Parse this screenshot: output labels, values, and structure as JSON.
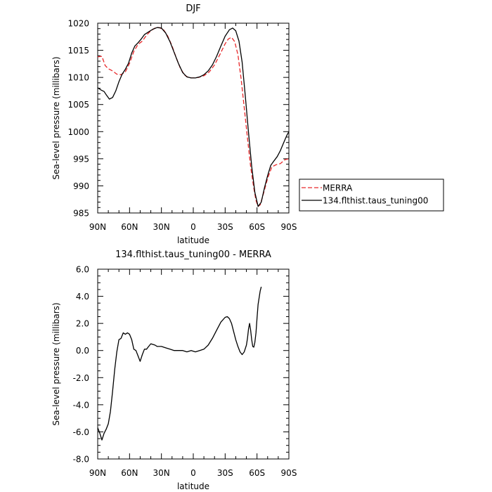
{
  "chart_data": [
    {
      "type": "line",
      "title": "DJF",
      "xlabel": "latitude",
      "ylabel": "Sea-level pressure (millibars)",
      "xlim": [
        -90,
        90
      ],
      "ylim": [
        985,
        1020
      ],
      "x_ticks": [
        {
          "value": -90,
          "label": "90N"
        },
        {
          "value": -60,
          "label": "60N"
        },
        {
          "value": -30,
          "label": "30N"
        },
        {
          "value": 0,
          "label": "0"
        },
        {
          "value": 30,
          "label": "30S"
        },
        {
          "value": 60,
          "label": "60S"
        },
        {
          "value": 90,
          "label": "90S"
        }
      ],
      "y_ticks": [
        {
          "value": 985,
          "label": "985"
        },
        {
          "value": 990,
          "label": "990"
        },
        {
          "value": 995,
          "label": "995"
        },
        {
          "value": 1000,
          "label": "1000"
        },
        {
          "value": 1005,
          "label": "1005"
        },
        {
          "value": 1010,
          "label": "1010"
        },
        {
          "value": 1015,
          "label": "1015"
        },
        {
          "value": 1020,
          "label": "1020"
        }
      ],
      "legend_position": "right",
      "series": [
        {
          "name": "MERRA",
          "color": "#e8282a",
          "style": "dashed",
          "points": [
            [
              -90,
              1013.8
            ],
            [
              -86,
              1013.9
            ],
            [
              -83,
              1012.2
            ],
            [
              -80,
              1011.6
            ],
            [
              -76,
              1011.2
            ],
            [
              -72,
              1010.6
            ],
            [
              -68,
              1010.5
            ],
            [
              -64,
              1011.0
            ],
            [
              -60,
              1012.6
            ],
            [
              -56,
              1014.8
            ],
            [
              -52,
              1016.1
            ],
            [
              -48,
              1016.7
            ],
            [
              -44,
              1017.8
            ],
            [
              -40,
              1018.6
            ],
            [
              -36,
              1019.1
            ],
            [
              -32,
              1019.2
            ],
            [
              -28,
              1018.8
            ],
            [
              -24,
              1017.6
            ],
            [
              -20,
              1015.8
            ],
            [
              -16,
              1013.6
            ],
            [
              -12,
              1011.6
            ],
            [
              -8,
              1010.4
            ],
            [
              -4,
              1009.9
            ],
            [
              0,
              1009.9
            ],
            [
              5,
              1010.0
            ],
            [
              10,
              1010.3
            ],
            [
              15,
              1011.0
            ],
            [
              20,
              1012.3
            ],
            [
              25,
              1014.2
            ],
            [
              30,
              1016.2
            ],
            [
              33,
              1017.1
            ],
            [
              36,
              1017.4
            ],
            [
              39,
              1016.6
            ],
            [
              42,
              1014.2
            ],
            [
              45,
              1009.8
            ],
            [
              48,
              1004.4
            ],
            [
              51,
              998.8
            ],
            [
              54,
              993.5
            ],
            [
              57,
              989.6
            ],
            [
              59,
              987.3
            ],
            [
              61,
              986.2
            ],
            [
              63,
              986.5
            ],
            [
              66,
              988.5
            ],
            [
              70,
              991.4
            ],
            [
              74,
              993.5
            ],
            [
              78,
              993.9
            ],
            [
              82,
              994.1
            ],
            [
              86,
              994.8
            ],
            [
              90,
              995.0
            ]
          ]
        },
        {
          "name": "134.flthist.taus_tuning00",
          "color": "#000000",
          "style": "solid",
          "points": [
            [
              -90,
              1008.1
            ],
            [
              -87,
              1007.7
            ],
            [
              -84,
              1007.4
            ],
            [
              -82,
              1006.8
            ],
            [
              -79,
              1006.0
            ],
            [
              -76,
              1006.3
            ],
            [
              -73,
              1007.5
            ],
            [
              -70,
              1009.2
            ],
            [
              -67,
              1010.6
            ],
            [
              -64,
              1011.5
            ],
            [
              -61,
              1012.6
            ],
            [
              -58,
              1014.5
            ],
            [
              -55,
              1015.8
            ],
            [
              -52,
              1016.4
            ],
            [
              -49,
              1017.1
            ],
            [
              -46,
              1017.9
            ],
            [
              -42,
              1018.4
            ],
            [
              -38,
              1018.9
            ],
            [
              -34,
              1019.2
            ],
            [
              -30,
              1019.1
            ],
            [
              -26,
              1018.2
            ],
            [
              -22,
              1016.6
            ],
            [
              -18,
              1014.6
            ],
            [
              -14,
              1012.6
            ],
            [
              -10,
              1010.9
            ],
            [
              -6,
              1010.1
            ],
            [
              -2,
              1009.9
            ],
            [
              2,
              1009.9
            ],
            [
              6,
              1010.1
            ],
            [
              10,
              1010.5
            ],
            [
              14,
              1011.2
            ],
            [
              18,
              1012.3
            ],
            [
              22,
              1013.9
            ],
            [
              26,
              1015.8
            ],
            [
              30,
              1017.6
            ],
            [
              34,
              1018.8
            ],
            [
              37,
              1019.1
            ],
            [
              40,
              1018.6
            ],
            [
              43,
              1016.7
            ],
            [
              46,
              1012.8
            ],
            [
              49,
              1006.6
            ],
            [
              52,
              999.8
            ],
            [
              55,
              993.6
            ],
            [
              58,
              988.8
            ],
            [
              61,
              986.2
            ],
            [
              64,
              987.0
            ],
            [
              67,
              989.6
            ],
            [
              70,
              991.9
            ],
            [
              73,
              993.8
            ],
            [
              76,
              994.6
            ],
            [
              79,
              995.4
            ],
            [
              82,
              996.5
            ],
            [
              85,
              997.9
            ],
            [
              88,
              999.3
            ],
            [
              90,
              1000.0
            ]
          ]
        }
      ]
    },
    {
      "type": "line",
      "title": "134.flthist.taus_tuning00 - MERRA",
      "xlabel": "latitude",
      "ylabel": "Sea-level pressure (millibars)",
      "xlim": [
        -90,
        90
      ],
      "ylim": [
        -8.0,
        6.0
      ],
      "x_ticks": [
        {
          "value": -90,
          "label": "90N"
        },
        {
          "value": -60,
          "label": "60N"
        },
        {
          "value": -30,
          "label": "30N"
        },
        {
          "value": 0,
          "label": "0"
        },
        {
          "value": 30,
          "label": "30S"
        },
        {
          "value": 60,
          "label": "60S"
        },
        {
          "value": 90,
          "label": "90S"
        }
      ],
      "y_ticks": [
        {
          "value": -8,
          "label": "-8.0"
        },
        {
          "value": -6,
          "label": "-6.0"
        },
        {
          "value": -4,
          "label": "-4.0"
        },
        {
          "value": -2,
          "label": "-2.0"
        },
        {
          "value": 0,
          "label": "0.0"
        },
        {
          "value": 2,
          "label": "2.0"
        },
        {
          "value": 4,
          "label": "4.0"
        },
        {
          "value": 6,
          "label": "6.0"
        }
      ],
      "series": [
        {
          "color": "#000000",
          "style": "solid",
          "points": [
            [
              -90,
              -5.7
            ],
            [
              -88,
              -6.1
            ],
            [
              -86,
              -6.6
            ],
            [
              -84,
              -6.1
            ],
            [
              -82,
              -5.8
            ],
            [
              -80,
              -5.4
            ],
            [
              -78,
              -4.5
            ],
            [
              -76,
              -3.0
            ],
            [
              -74,
              -1.4
            ],
            [
              -72,
              -0.1
            ],
            [
              -70,
              0.8
            ],
            [
              -68,
              0.9
            ],
            [
              -66,
              1.3
            ],
            [
              -64,
              1.2
            ],
            [
              -62,
              1.3
            ],
            [
              -60,
              1.2
            ],
            [
              -58,
              0.8
            ],
            [
              -56,
              0.1
            ],
            [
              -54,
              0.0
            ],
            [
              -52,
              -0.4
            ],
            [
              -50,
              -0.8
            ],
            [
              -48,
              -0.3
            ],
            [
              -46,
              0.1
            ],
            [
              -44,
              0.1
            ],
            [
              -42,
              0.3
            ],
            [
              -40,
              0.5
            ],
            [
              -36,
              0.4
            ],
            [
              -34,
              0.3
            ],
            [
              -30,
              0.3
            ],
            [
              -26,
              0.2
            ],
            [
              -22,
              0.1
            ],
            [
              -18,
              0.0
            ],
            [
              -14,
              0.0
            ],
            [
              -10,
              0.0
            ],
            [
              -6,
              -0.1
            ],
            [
              -2,
              0.0
            ],
            [
              2,
              -0.1
            ],
            [
              6,
              0.0
            ],
            [
              10,
              0.1
            ],
            [
              14,
              0.4
            ],
            [
              18,
              0.9
            ],
            [
              22,
              1.5
            ],
            [
              26,
              2.1
            ],
            [
              30,
              2.45
            ],
            [
              32,
              2.5
            ],
            [
              34,
              2.35
            ],
            [
              36,
              2.0
            ],
            [
              38,
              1.4
            ],
            [
              40,
              0.8
            ],
            [
              42,
              0.3
            ],
            [
              44,
              -0.1
            ],
            [
              46,
              -0.3
            ],
            [
              48,
              -0.1
            ],
            [
              50,
              0.4
            ],
            [
              51,
              0.9
            ],
            [
              52,
              1.6
            ],
            [
              53,
              2.0
            ],
            [
              54,
              1.5
            ],
            [
              55,
              0.8
            ],
            [
              56,
              0.3
            ],
            [
              57,
              0.25
            ],
            [
              58,
              0.6
            ],
            [
              59,
              1.3
            ],
            [
              60,
              2.4
            ],
            [
              61,
              3.4
            ],
            [
              62,
              3.9
            ],
            [
              63,
              4.4
            ],
            [
              64,
              4.7
            ]
          ]
        }
      ]
    }
  ]
}
